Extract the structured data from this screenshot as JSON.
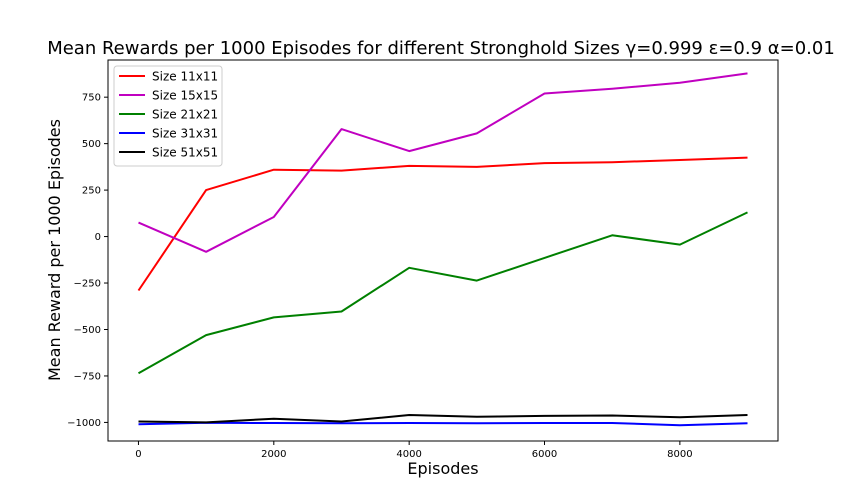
{
  "chart_data": {
    "type": "line",
    "title": "Mean Rewards per 1000 Episodes for different Stronghold Sizes γ=0.999  ε=0.9  α=0.01",
    "xlabel": "Episodes",
    "ylabel": "Mean Reward per 1000 Episodes",
    "x": [
      0,
      1000,
      2000,
      3000,
      4000,
      5000,
      6000,
      7000,
      8000,
      9000
    ],
    "xlim": [
      -450,
      9450
    ],
    "ylim": [
      -1100,
      950
    ],
    "xticks": [
      0,
      2000,
      4000,
      6000,
      8000
    ],
    "yticks": [
      -1000,
      -750,
      -500,
      -250,
      0,
      250,
      500,
      750
    ],
    "grid": false,
    "legend_position": "top-left",
    "series": [
      {
        "name": "Size 11x11",
        "color": "#ff0000",
        "values": [
          -290,
          250,
          360,
          355,
          380,
          375,
          395,
          400,
          412,
          425
        ]
      },
      {
        "name": "Size 15x15",
        "color": "#c000c0",
        "values": [
          75,
          -82,
          105,
          578,
          460,
          555,
          770,
          795,
          828,
          878
        ]
      },
      {
        "name": "Size 21x21",
        "color": "#008000",
        "values": [
          -735,
          -530,
          -435,
          -403,
          -168,
          -237,
          -115,
          7,
          -43,
          130
        ]
      },
      {
        "name": "Size 31x31",
        "color": "#0000ff",
        "values": [
          -1010,
          -1002,
          -1003,
          -1004,
          -1003,
          -1004,
          -1003,
          -1003,
          -1015,
          -1005
        ]
      },
      {
        "name": "Size 51x51",
        "color": "#000000",
        "values": [
          -995,
          -1000,
          -980,
          -995,
          -960,
          -970,
          -965,
          -963,
          -972,
          -960
        ]
      }
    ]
  }
}
